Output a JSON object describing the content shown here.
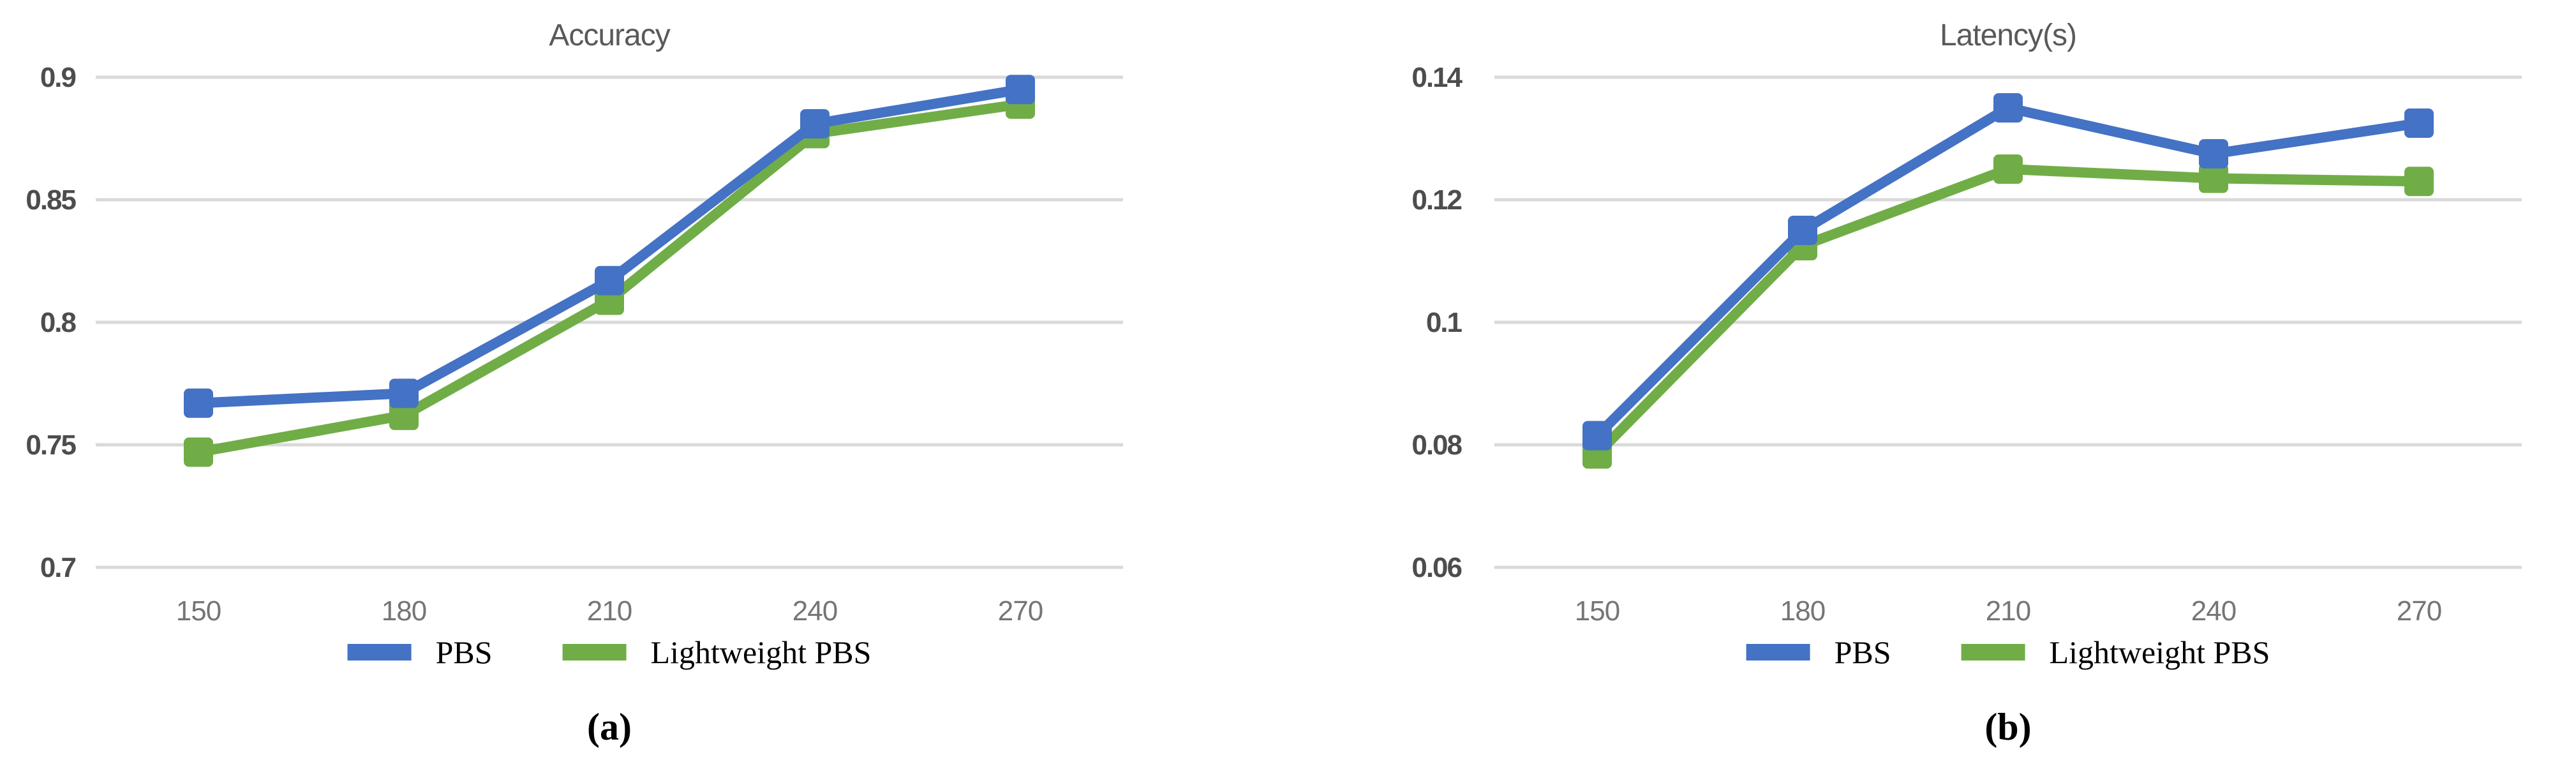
{
  "figure": {
    "background": "#ffffff"
  },
  "colors": {
    "pbs": "#4472C4",
    "lightweight_pbs": "#70AD47",
    "gridline": "#D9D9D9",
    "y_axis_text": "#4d4d4d",
    "x_axis_text": "#757575",
    "title_text": "#595959",
    "legend_text": "#000000"
  },
  "chart_data": [
    {
      "type": "line",
      "title": "Accuracy",
      "caption": "(a)",
      "x": [
        150,
        180,
        210,
        240,
        270
      ],
      "x_tick_labels": [
        "150",
        "180",
        "210",
        "240",
        "270"
      ],
      "y_ticks": [
        0.9,
        0.85,
        0.8,
        0.75,
        0.7
      ],
      "y_tick_labels": [
        "0.9",
        "0.85",
        "0.8",
        "0.75",
        "0.7"
      ],
      "ylim": [
        0.7,
        0.9
      ],
      "grid": true,
      "legend_position": "bottom",
      "marker": "square",
      "series": [
        {
          "name": "PBS",
          "color_key": "pbs",
          "values": [
            0.767,
            0.771,
            0.817,
            0.881,
            0.895
          ]
        },
        {
          "name": "Lightweight PBS",
          "color_key": "lightweight_pbs",
          "values": [
            0.747,
            0.762,
            0.809,
            0.877,
            0.889
          ]
        }
      ]
    },
    {
      "type": "line",
      "title": "Latency(s)",
      "caption": "(b)",
      "x": [
        150,
        180,
        210,
        240,
        270
      ],
      "x_tick_labels": [
        "150",
        "180",
        "210",
        "240",
        "270"
      ],
      "y_ticks": [
        0.14,
        0.12,
        0.1,
        0.08,
        0.06
      ],
      "y_tick_labels": [
        "0.14",
        "0.12",
        "0.1",
        "0.08",
        "0.06"
      ],
      "ylim": [
        0.06,
        0.14
      ],
      "grid": true,
      "legend_position": "bottom",
      "marker": "square",
      "series": [
        {
          "name": "PBS",
          "color_key": "pbs",
          "values": [
            0.0815,
            0.115,
            0.135,
            0.1275,
            0.1325
          ]
        },
        {
          "name": "Lightweight PBS",
          "color_key": "lightweight_pbs",
          "values": [
            0.0785,
            0.1125,
            0.125,
            0.1235,
            0.123
          ]
        }
      ]
    }
  ]
}
